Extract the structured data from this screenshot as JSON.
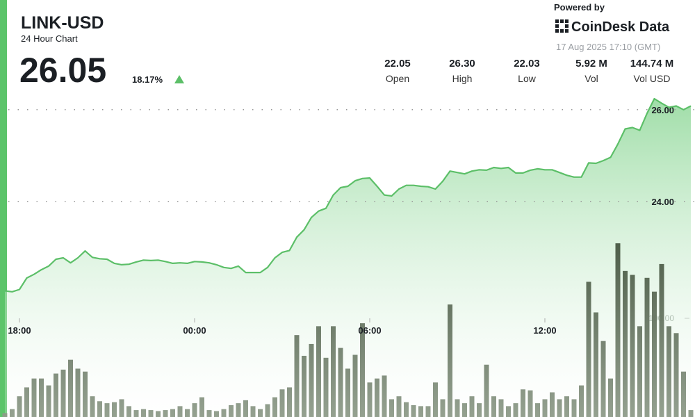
{
  "header": {
    "title": "LINK-USD",
    "subtitle": "24 Hour Chart",
    "price": "26.05",
    "change": "18.17%",
    "powered_by": "Powered by",
    "brand": "CoinDesk Data",
    "timestamp": "17 Aug 2025 17:10 (GMT)"
  },
  "stats": [
    {
      "value": "22.05",
      "label": "Open"
    },
    {
      "value": "26.30",
      "label": "High"
    },
    {
      "value": "22.03",
      "label": "Low"
    },
    {
      "value": "5.92 M",
      "label": "Vol"
    },
    {
      "value": "144.74 M",
      "label": "Vol USD"
    }
  ],
  "chart_data": {
    "type": "line",
    "x": [
      "17:30",
      "17:45",
      "18:00",
      "18:15",
      "18:30",
      "18:45",
      "19:00",
      "19:15",
      "19:30",
      "19:45",
      "20:00",
      "20:15",
      "20:30",
      "20:45",
      "21:00",
      "21:15",
      "21:30",
      "21:45",
      "22:00",
      "22:15",
      "22:30",
      "22:45",
      "23:00",
      "23:15",
      "23:30",
      "23:45",
      "00:00",
      "00:15",
      "00:30",
      "00:45",
      "01:00",
      "01:15",
      "01:30",
      "01:45",
      "02:00",
      "02:15",
      "02:30",
      "02:45",
      "03:00",
      "03:15",
      "03:30",
      "03:45",
      "04:00",
      "04:15",
      "04:30",
      "04:45",
      "05:00",
      "05:15",
      "05:30",
      "05:45",
      "06:00",
      "06:15",
      "06:30",
      "06:45",
      "07:00",
      "07:15",
      "07:30",
      "07:45",
      "08:00",
      "08:15",
      "08:30",
      "08:45",
      "09:00",
      "09:15",
      "09:30",
      "09:45",
      "10:00",
      "10:15",
      "10:30",
      "10:45",
      "11:00",
      "11:15",
      "11:30",
      "11:45",
      "12:00",
      "12:15",
      "12:30",
      "12:45",
      "13:00",
      "13:15",
      "13:30",
      "13:45",
      "14:00",
      "14:15",
      "14:30",
      "14:45",
      "15:00",
      "15:15",
      "15:30",
      "15:45",
      "16:00",
      "16:15",
      "16:30",
      "16:45",
      "17:00"
    ],
    "series": [
      {
        "color": "#5cbf68",
        "values": [
          22.05,
          22.03,
          22.08,
          22.33,
          22.41,
          22.51,
          22.59,
          22.74,
          22.77,
          22.66,
          22.77,
          22.92,
          22.78,
          22.75,
          22.74,
          22.65,
          22.62,
          22.63,
          22.68,
          22.72,
          22.71,
          22.72,
          22.69,
          22.65,
          22.66,
          22.65,
          22.69,
          22.68,
          22.66,
          22.62,
          22.56,
          22.54,
          22.59,
          22.45,
          22.45,
          22.45,
          22.56,
          22.77,
          22.89,
          22.93,
          23.22,
          23.38,
          23.65,
          23.79,
          23.85,
          24.14,
          24.3,
          24.33,
          24.45,
          24.5,
          24.51,
          24.33,
          24.14,
          24.12,
          24.27,
          24.35,
          24.35,
          24.33,
          24.32,
          24.27,
          24.44,
          24.66,
          24.63,
          24.6,
          24.66,
          24.69,
          24.68,
          24.74,
          24.72,
          24.74,
          24.62,
          24.62,
          24.68,
          24.71,
          24.69,
          24.69,
          24.63,
          24.57,
          24.53,
          24.53,
          24.84,
          24.83,
          24.89,
          24.96,
          25.25,
          25.58,
          25.61,
          25.55,
          25.92,
          26.24,
          26.14,
          26.05,
          26.08,
          26.0,
          26.08
        ]
      },
      {
        "type": "bar",
        "axis": "y2",
        "color": "#55654f",
        "values": [
          4,
          8,
          21,
          30,
          39,
          39,
          32,
          44,
          48,
          58,
          49,
          46,
          21,
          16,
          14,
          15,
          18,
          11,
          7,
          8,
          7,
          6,
          7,
          8,
          11,
          8,
          14,
          20,
          7,
          6,
          8,
          12,
          14,
          17,
          11,
          8,
          13,
          20,
          28,
          30,
          83,
          62,
          74,
          92,
          60,
          92,
          70,
          49,
          63,
          95,
          35,
          39,
          42,
          18,
          21,
          15,
          12,
          11,
          11,
          35,
          18,
          114,
          18,
          14,
          21,
          14,
          53,
          21,
          18,
          11,
          14,
          28,
          27,
          14,
          18,
          25,
          18,
          21,
          18,
          32,
          137,
          106,
          77,
          39,
          176,
          148,
          144,
          92,
          141,
          127,
          155,
          92,
          85,
          46,
          7
        ]
      }
    ],
    "ylim": [
      19.3,
      26.3
    ],
    "yticks": [
      {
        "value": 24,
        "label": "24.00"
      },
      {
        "value": 26,
        "label": "26.00"
      }
    ],
    "y2lim": [
      0,
      300
    ],
    "y2ticks": [
      {
        "value": 100,
        "label": "100.00"
      }
    ],
    "xticks": [
      "18:00",
      "00:00",
      "06:00",
      "12:00"
    ],
    "grid": true
  }
}
